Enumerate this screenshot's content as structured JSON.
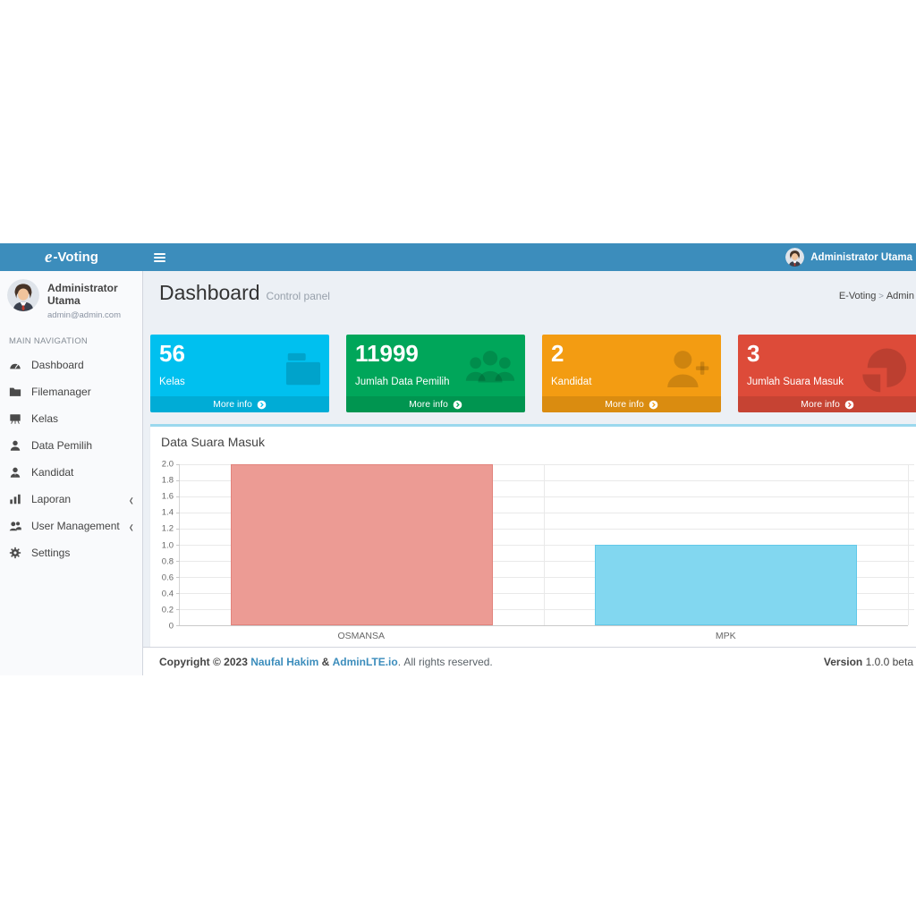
{
  "navbar": {
    "brand_prefix": "e",
    "brand_suffix": "-Voting",
    "user_name": "Administrator Utama"
  },
  "sidebar": {
    "user": {
      "name": "Administrator Utama",
      "email": "admin@admin.com"
    },
    "section_header": "MAIN NAVIGATION",
    "items": [
      {
        "label": "Dashboard",
        "icon": "tachometer-icon",
        "has_submenu": false
      },
      {
        "label": "Filemanager",
        "icon": "folder-icon",
        "has_submenu": false
      },
      {
        "label": "Kelas",
        "icon": "chalkboard-icon",
        "has_submenu": false
      },
      {
        "label": "Data Pemilih",
        "icon": "user-icon",
        "has_submenu": false
      },
      {
        "label": "Kandidat",
        "icon": "user-tie-icon",
        "has_submenu": false
      },
      {
        "label": "Laporan",
        "icon": "bar-chart-icon",
        "has_submenu": true
      },
      {
        "label": "User Management",
        "icon": "users-icon",
        "has_submenu": true
      },
      {
        "label": "Settings",
        "icon": "gear-icon",
        "has_submenu": false
      }
    ]
  },
  "content_header": {
    "title": "Dashboard",
    "subtitle": "Control panel",
    "breadcrumb": [
      "E-Voting",
      "Admin"
    ]
  },
  "info_boxes": [
    {
      "value": "56",
      "label": "Kelas",
      "more_info": "More info",
      "color": "#00c0ef",
      "icon": "folder-icon"
    },
    {
      "value": "11999",
      "label": "Jumlah Data Pemilih",
      "more_info": "More info",
      "color": "#00a65a",
      "icon": "users-icon"
    },
    {
      "value": "2",
      "label": "Kandidat",
      "more_info": "More info",
      "color": "#f39c12",
      "icon": "user-plus-icon"
    },
    {
      "value": "3",
      "label": "Jumlah Suara Masuk",
      "more_info": "More info",
      "color": "#dd4b39",
      "icon": "pie-chart-icon"
    }
  ],
  "chart_box": {
    "title": "Data Suara Masuk"
  },
  "chart_data": {
    "type": "bar",
    "title": "Data Suara Masuk",
    "categories": [
      "OSMANSA",
      "MPK"
    ],
    "values": [
      2,
      1
    ],
    "xlabel": "",
    "ylabel": "",
    "ylim": [
      0,
      2
    ],
    "ytick_labels": [
      "2.0",
      "1.8",
      "1.6",
      "1.4",
      "1.2",
      "1.0",
      "0.8",
      "0.6",
      "0.4",
      "0.2",
      "0"
    ],
    "bar_colors": [
      "#EC9B94",
      "#82D7F0"
    ],
    "bar_border_colors": [
      "#E2837C",
      "#62C9E9"
    ],
    "grid": true,
    "legend": false
  },
  "footer": {
    "copyright_bold": "Copyright © 2023",
    "link1": "Naufal Hakim",
    "amp": "&",
    "link2": "AdminLTE.io",
    "rights": "All rights reserved.",
    "version_label": "Version",
    "version_value": "1.0.0 beta"
  },
  "colors": {
    "navbar": "#3c8dbc",
    "content_bg": "#ecf0f5",
    "sidebar_bg": "#f9fafc",
    "link": "#3c8dbc",
    "chart_box_border_top": "#9bd8ee"
  }
}
